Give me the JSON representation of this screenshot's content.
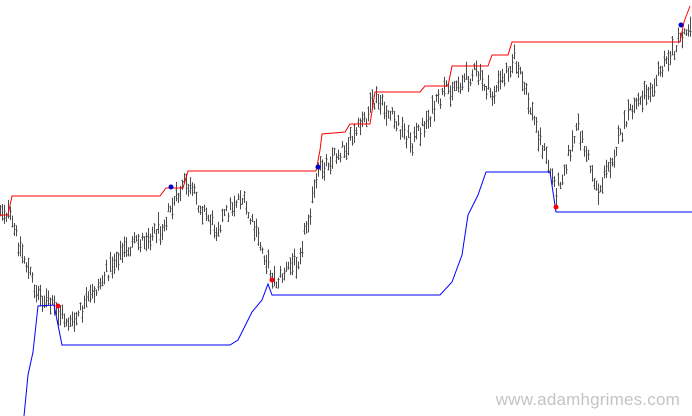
{
  "watermark": "www.adamhgrimes.com",
  "colors": {
    "bars": "#4a4a4a",
    "upper_channel": "#ff0000",
    "lower_channel": "#0000ff",
    "breakout_up_marker": "#0000cc",
    "breakout_down_marker": "#ff0000",
    "background": "#ffffff"
  },
  "chart_data": {
    "type": "ohlc-bar-with-channel",
    "title": "",
    "xlabel": "",
    "ylabel": "",
    "axes_visible": false,
    "grid": false,
    "ylim": [
      0,
      416
    ],
    "price_segments": [
      {
        "from": 0,
        "to": 8,
        "start": 208,
        "end": 214
      },
      {
        "from": 8,
        "to": 36,
        "start": 214,
        "end": 292
      },
      {
        "from": 36,
        "to": 72,
        "start": 292,
        "end": 325
      },
      {
        "from": 72,
        "to": 118,
        "start": 325,
        "end": 255
      },
      {
        "from": 118,
        "to": 160,
        "start": 255,
        "end": 228
      },
      {
        "from": 160,
        "to": 185,
        "start": 228,
        "end": 183
      },
      {
        "from": 185,
        "to": 215,
        "start": 183,
        "end": 228
      },
      {
        "from": 215,
        "to": 240,
        "start": 228,
        "end": 195
      },
      {
        "from": 240,
        "to": 275,
        "start": 195,
        "end": 282
      },
      {
        "from": 275,
        "to": 298,
        "start": 282,
        "end": 258
      },
      {
        "from": 298,
        "to": 320,
        "start": 258,
        "end": 168
      },
      {
        "from": 320,
        "to": 352,
        "start": 168,
        "end": 140
      },
      {
        "from": 352,
        "to": 376,
        "start": 140,
        "end": 100
      },
      {
        "from": 376,
        "to": 412,
        "start": 100,
        "end": 142
      },
      {
        "from": 412,
        "to": 445,
        "start": 142,
        "end": 92
      },
      {
        "from": 445,
        "to": 475,
        "start": 92,
        "end": 72
      },
      {
        "from": 475,
        "to": 492,
        "start": 72,
        "end": 96
      },
      {
        "from": 492,
        "to": 514,
        "start": 96,
        "end": 58
      },
      {
        "from": 514,
        "to": 556,
        "start": 58,
        "end": 190
      },
      {
        "from": 556,
        "to": 578,
        "start": 190,
        "end": 128
      },
      {
        "from": 578,
        "to": 598,
        "start": 128,
        "end": 192
      },
      {
        "from": 598,
        "to": 630,
        "start": 192,
        "end": 112
      },
      {
        "from": 630,
        "to": 660,
        "start": 112,
        "end": 72
      },
      {
        "from": 660,
        "to": 692,
        "start": 72,
        "end": 18
      }
    ],
    "upper_channel": [
      [
        0,
        215
      ],
      [
        8,
        215
      ],
      [
        12,
        196
      ],
      [
        160,
        196
      ],
      [
        166,
        188
      ],
      [
        183,
        188
      ],
      [
        188,
        171
      ],
      [
        316,
        171
      ],
      [
        320,
        150
      ],
      [
        322,
        134
      ],
      [
        345,
        132
      ],
      [
        350,
        124
      ],
      [
        370,
        124
      ],
      [
        375,
        92
      ],
      [
        420,
        92
      ],
      [
        425,
        86
      ],
      [
        448,
        86
      ],
      [
        452,
        66
      ],
      [
        488,
        66
      ],
      [
        492,
        55
      ],
      [
        508,
        55
      ],
      [
        512,
        42
      ],
      [
        680,
        42
      ],
      [
        684,
        22
      ],
      [
        690,
        6
      ]
    ],
    "lower_channel": [
      [
        24,
        416
      ],
      [
        28,
        375
      ],
      [
        33,
        352
      ],
      [
        38,
        306
      ],
      [
        54,
        305
      ],
      [
        62,
        345
      ],
      [
        230,
        345
      ],
      [
        238,
        340
      ],
      [
        244,
        328
      ],
      [
        252,
        312
      ],
      [
        262,
        300
      ],
      [
        268,
        284
      ],
      [
        272,
        295
      ],
      [
        440,
        295
      ],
      [
        452,
        282
      ],
      [
        462,
        255
      ],
      [
        468,
        215
      ],
      [
        478,
        195
      ],
      [
        486,
        172
      ],
      [
        550,
        172
      ],
      [
        556,
        212
      ],
      [
        692,
        212
      ]
    ],
    "breakout_up_markers": [
      [
        171,
        187
      ],
      [
        318,
        167
      ],
      [
        681,
        25
      ]
    ],
    "breakout_down_markers": [
      [
        58,
        306
      ],
      [
        272,
        280
      ],
      [
        556,
        207
      ]
    ]
  }
}
